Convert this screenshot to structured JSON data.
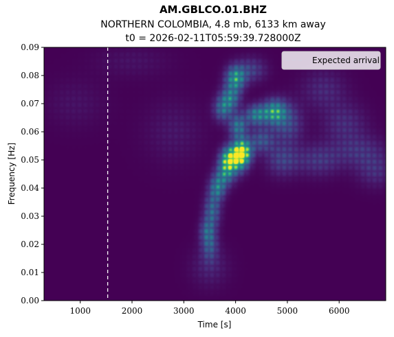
{
  "chart_data": {
    "type": "heatmap",
    "title": "AM.GBLCO.01.BHZ",
    "subtitle": "NORTHERN COLOMBIA, 4.8 mb, 6133 km away",
    "subtitle2": "t0 = 2026-02-11T05:59:39.728000Z",
    "xlabel": "Time [s]",
    "ylabel": "Frequency [Hz]",
    "xlim": [
      300,
      6900
    ],
    "ylim": [
      0.0,
      0.09
    ],
    "x_ticks": [
      1000,
      2000,
      3000,
      4000,
      5000,
      6000
    ],
    "x_tick_labels": [
      "1000",
      "2000",
      "3000",
      "4000",
      "5000",
      "6000"
    ],
    "y_ticks": [
      0.0,
      0.01,
      0.02,
      0.03,
      0.04,
      0.05,
      0.06,
      0.07,
      0.08,
      0.09
    ],
    "y_tick_labels": [
      "0.00",
      "0.01",
      "0.02",
      "0.03",
      "0.04",
      "0.05",
      "0.06",
      "0.07",
      "0.08",
      "0.09"
    ],
    "colormap": "viridis",
    "expected_arrival_s": 1530,
    "legend": {
      "label": "Expected arrival",
      "placement": "top-right"
    },
    "energy_blobs": [
      {
        "t": 4050,
        "f": 0.051,
        "st": 130,
        "sf": 0.0035,
        "amp": 1.0
      },
      {
        "t": 3850,
        "f": 0.05,
        "st": 110,
        "sf": 0.003,
        "amp": 0.85
      },
      {
        "t": 4150,
        "f": 0.053,
        "st": 120,
        "sf": 0.003,
        "amp": 0.8
      },
      {
        "t": 4000,
        "f": 0.079,
        "st": 130,
        "sf": 0.003,
        "amp": 0.8
      },
      {
        "t": 4750,
        "f": 0.067,
        "st": 160,
        "sf": 0.003,
        "amp": 0.8
      },
      {
        "t": 4400,
        "f": 0.066,
        "st": 140,
        "sf": 0.0025,
        "amp": 0.65
      },
      {
        "t": 4050,
        "f": 0.062,
        "st": 120,
        "sf": 0.003,
        "amp": 0.6
      },
      {
        "t": 3900,
        "f": 0.072,
        "st": 130,
        "sf": 0.003,
        "amp": 0.6
      },
      {
        "t": 3750,
        "f": 0.068,
        "st": 120,
        "sf": 0.003,
        "amp": 0.5
      },
      {
        "t": 3650,
        "f": 0.04,
        "st": 110,
        "sf": 0.003,
        "amp": 0.6
      },
      {
        "t": 3800,
        "f": 0.045,
        "st": 130,
        "sf": 0.003,
        "amp": 0.55
      },
      {
        "t": 3550,
        "f": 0.032,
        "st": 110,
        "sf": 0.004,
        "amp": 0.5
      },
      {
        "t": 3500,
        "f": 0.02,
        "st": 110,
        "sf": 0.004,
        "amp": 0.4
      },
      {
        "t": 3450,
        "f": 0.025,
        "st": 100,
        "sf": 0.003,
        "amp": 0.35
      },
      {
        "t": 4500,
        "f": 0.057,
        "st": 170,
        "sf": 0.003,
        "amp": 0.4
      },
      {
        "t": 5000,
        "f": 0.063,
        "st": 200,
        "sf": 0.005,
        "amp": 0.35
      },
      {
        "t": 4300,
        "f": 0.082,
        "st": 200,
        "sf": 0.003,
        "amp": 0.3
      },
      {
        "t": 4900,
        "f": 0.05,
        "st": 220,
        "sf": 0.004,
        "amp": 0.3
      },
      {
        "t": 5600,
        "f": 0.05,
        "st": 300,
        "sf": 0.004,
        "amp": 0.25
      },
      {
        "t": 6400,
        "f": 0.053,
        "st": 350,
        "sf": 0.004,
        "amp": 0.22
      },
      {
        "t": 6100,
        "f": 0.063,
        "st": 300,
        "sf": 0.005,
        "amp": 0.2
      },
      {
        "t": 5700,
        "f": 0.075,
        "st": 300,
        "sf": 0.005,
        "amp": 0.18
      },
      {
        "t": 6700,
        "f": 0.046,
        "st": 250,
        "sf": 0.004,
        "amp": 0.2
      },
      {
        "t": 3500,
        "f": 0.012,
        "st": 250,
        "sf": 0.005,
        "amp": 0.15
      },
      {
        "t": 900,
        "f": 0.07,
        "st": 400,
        "sf": 0.006,
        "amp": 0.08
      },
      {
        "t": 2000,
        "f": 0.085,
        "st": 500,
        "sf": 0.004,
        "amp": 0.08
      },
      {
        "t": 2800,
        "f": 0.06,
        "st": 400,
        "sf": 0.008,
        "amp": 0.1
      }
    ]
  }
}
